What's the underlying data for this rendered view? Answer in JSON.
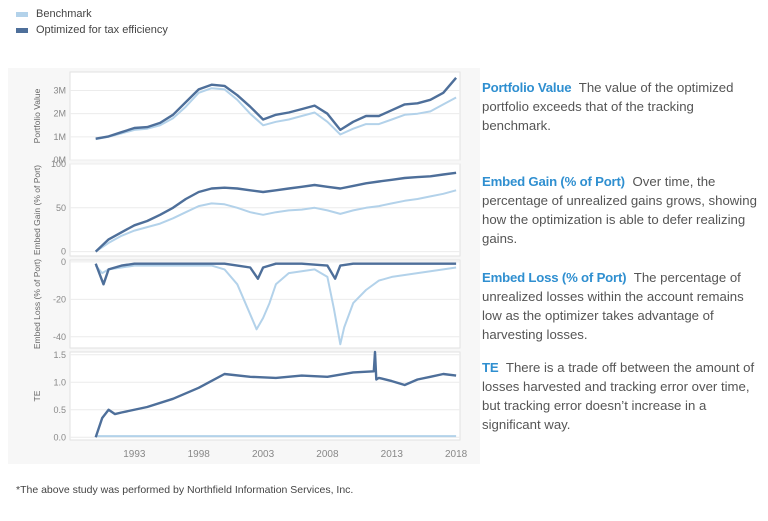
{
  "legend": [
    {
      "label": "Benchmark",
      "color": "#b3d2ea"
    },
    {
      "label": "Optimized for tax efficiency",
      "color": "#4e6f9a"
    }
  ],
  "chart_data": {
    "type": "line",
    "x_ticks": [
      "1993",
      "1998",
      "2003",
      "2008",
      "2013",
      "2018"
    ],
    "xlim": [
      1988,
      2018.3
    ],
    "panels": [
      {
        "ylabel": "Portfolio Value",
        "ylim": [
          0,
          3.8
        ],
        "ticks": [
          {
            "v": 0,
            "label": "0M"
          },
          {
            "v": 1,
            "label": "1M"
          },
          {
            "v": 2,
            "label": "2M"
          },
          {
            "v": 3,
            "label": "3M"
          }
        ],
        "series": [
          {
            "name": "Benchmark",
            "x": [
              1990,
              1991,
              1992,
              1993,
              1994,
              1995,
              1996,
              1997,
              1998,
              1999,
              2000,
              2001,
              2002,
              2003,
              2004,
              2005,
              2006,
              2007,
              2008,
              2009,
              2010,
              2011,
              2012,
              2013,
              2014,
              2015,
              2016,
              2017,
              2018
            ],
            "values": [
              0.9,
              1.0,
              1.15,
              1.3,
              1.35,
              1.5,
              1.8,
              2.3,
              2.9,
              3.1,
              3.05,
              2.6,
              2.0,
              1.5,
              1.65,
              1.75,
              1.9,
              2.05,
              1.65,
              1.1,
              1.35,
              1.55,
              1.55,
              1.75,
              1.95,
              2.0,
              2.1,
              2.4,
              2.7
            ]
          },
          {
            "name": "Optimized for tax efficiency",
            "x": [
              1990,
              1991,
              1992,
              1993,
              1994,
              1995,
              1996,
              1997,
              1998,
              1999,
              2000,
              2001,
              2002,
              2003,
              2004,
              2005,
              2006,
              2007,
              2008,
              2009,
              2010,
              2011,
              2012,
              2013,
              2014,
              2015,
              2016,
              2017,
              2018
            ],
            "values": [
              0.92,
              1.02,
              1.2,
              1.38,
              1.42,
              1.6,
              1.95,
              2.5,
              3.05,
              3.25,
              3.2,
              2.8,
              2.3,
              1.75,
              1.95,
              2.05,
              2.2,
              2.35,
              2.0,
              1.3,
              1.65,
              1.9,
              1.9,
              2.15,
              2.4,
              2.45,
              2.6,
              2.9,
              3.55
            ]
          }
        ]
      },
      {
        "ylabel": "Embed Gain (% of Port)",
        "ylim": [
          -5,
          100
        ],
        "ticks": [
          {
            "v": 0,
            "label": "0"
          },
          {
            "v": 50,
            "label": "50"
          },
          {
            "v": 100,
            "label": "100"
          }
        ],
        "series": [
          {
            "name": "Benchmark",
            "x": [
              1990,
              1991,
              1992,
              1993,
              1994,
              1995,
              1996,
              1997,
              1998,
              1999,
              2000,
              2001,
              2002,
              2003,
              2004,
              2005,
              2006,
              2007,
              2008,
              2009,
              2010,
              2011,
              2012,
              2013,
              2014,
              2015,
              2016,
              2017,
              2018
            ],
            "values": [
              0,
              10,
              18,
              24,
              28,
              32,
              38,
              45,
              52,
              55,
              54,
              50,
              45,
              42,
              45,
              47,
              48,
              50,
              47,
              43,
              47,
              50,
              52,
              55,
              58,
              60,
              63,
              66,
              70
            ]
          },
          {
            "name": "Optimized for tax efficiency",
            "x": [
              1990,
              1991,
              1992,
              1993,
              1994,
              1995,
              1996,
              1997,
              1998,
              1999,
              2000,
              2001,
              2002,
              2003,
              2004,
              2005,
              2006,
              2007,
              2008,
              2009,
              2010,
              2011,
              2012,
              2013,
              2014,
              2015,
              2016,
              2017,
              2018
            ],
            "values": [
              0,
              14,
              22,
              30,
              35,
              42,
              50,
              60,
              68,
              72,
              73,
              72,
              70,
              68,
              70,
              72,
              74,
              76,
              74,
              72,
              75,
              78,
              80,
              82,
              84,
              85,
              86,
              88,
              90
            ]
          }
        ]
      },
      {
        "ylabel": "Embed Loss (% of Port)",
        "ylim": [
          -46,
          1
        ],
        "ticks": [
          {
            "v": 0,
            "label": "0"
          },
          {
            "v": -20,
            "label": "-20"
          },
          {
            "v": -40,
            "label": "-40"
          }
        ],
        "series": [
          {
            "name": "Benchmark",
            "x": [
              1990,
              1990.5,
              1991,
              1992,
              1993,
              1995,
              1997,
              1999,
              2000,
              2001,
              2002,
              2002.5,
              2003,
              2003.5,
              2004,
              2005,
              2007,
              2008,
              2008.5,
              2009,
              2009.3,
              2010,
              2011,
              2012,
              2013,
              2015,
              2017,
              2018
            ],
            "values": [
              -2,
              -6,
              -4,
              -3,
              -2,
              -2,
              -2,
              -2,
              -4,
              -12,
              -28,
              -36,
              -30,
              -22,
              -12,
              -6,
              -4,
              -8,
              -25,
              -44,
              -35,
              -22,
              -15,
              -10,
              -8,
              -6,
              -4,
              -3
            ]
          },
          {
            "name": "Optimized for tax efficiency",
            "x": [
              1990,
              1990.6,
              1991,
              1992,
              1993,
              1995,
              1997,
              1999,
              2000,
              2001,
              2002,
              2002.6,
              2003,
              2004,
              2006,
              2008,
              2008.6,
              2009,
              2010,
              2012,
              2014,
              2016,
              2018
            ],
            "values": [
              -1,
              -12,
              -4,
              -2,
              -1,
              -1,
              -1,
              -1,
              -1,
              -2,
              -3,
              -9,
              -3,
              -1,
              -1,
              -2,
              -9,
              -2,
              -1,
              -1,
              -1,
              -1,
              -1
            ]
          }
        ]
      },
      {
        "ylabel": "TE",
        "ylim": [
          -0.05,
          1.55
        ],
        "ticks": [
          {
            "v": 0,
            "label": "0.0"
          },
          {
            "v": 0.5,
            "label": "0.5"
          },
          {
            "v": 1,
            "label": "1.0"
          },
          {
            "v": 1.5,
            "label": "1.5"
          }
        ],
        "series": [
          {
            "name": "Benchmark",
            "x": [
              1990,
              2018
            ],
            "values": [
              0.02,
              0.02
            ]
          },
          {
            "name": "Optimized for tax efficiency",
            "x": [
              1990,
              1990.5,
              1991,
              1991.5,
              1992,
              1994,
              1996,
              1998,
              2000,
              2002,
              2004,
              2006,
              2008,
              2010,
              2011.6,
              2011.7,
              2011.8,
              2012,
              2013,
              2014,
              2015,
              2016,
              2017,
              2018
            ],
            "values": [
              0,
              0.35,
              0.5,
              0.42,
              0.45,
              0.55,
              0.7,
              0.9,
              1.15,
              1.1,
              1.08,
              1.12,
              1.1,
              1.18,
              1.2,
              1.55,
              1.05,
              1.08,
              1.02,
              0.95,
              1.05,
              1.1,
              1.15,
              1.12
            ]
          }
        ]
      }
    ]
  },
  "descriptions": [
    {
      "head": "Portfolio Value",
      "body": "The value of the optimized portfolio exceeds that of the tracking benchmark."
    },
    {
      "head": "Embed Gain (% of Port)",
      "body": "Over time, the percentage of unrealized gains grows, showing how the optimization is able to defer realizing gains."
    },
    {
      "head": "Embed Loss (% of Port)",
      "body": "The percentage of unrealized losses within the account remains low as the optimizer takes advantage of harvesting losses."
    },
    {
      "head": "TE",
      "body": "There is a trade off between the amount of losses harvested and tracking error over time, but tracking error doesn’t increase in a significant way."
    }
  ],
  "footnote": "*The above study was performed by Northfield Information Services, Inc."
}
